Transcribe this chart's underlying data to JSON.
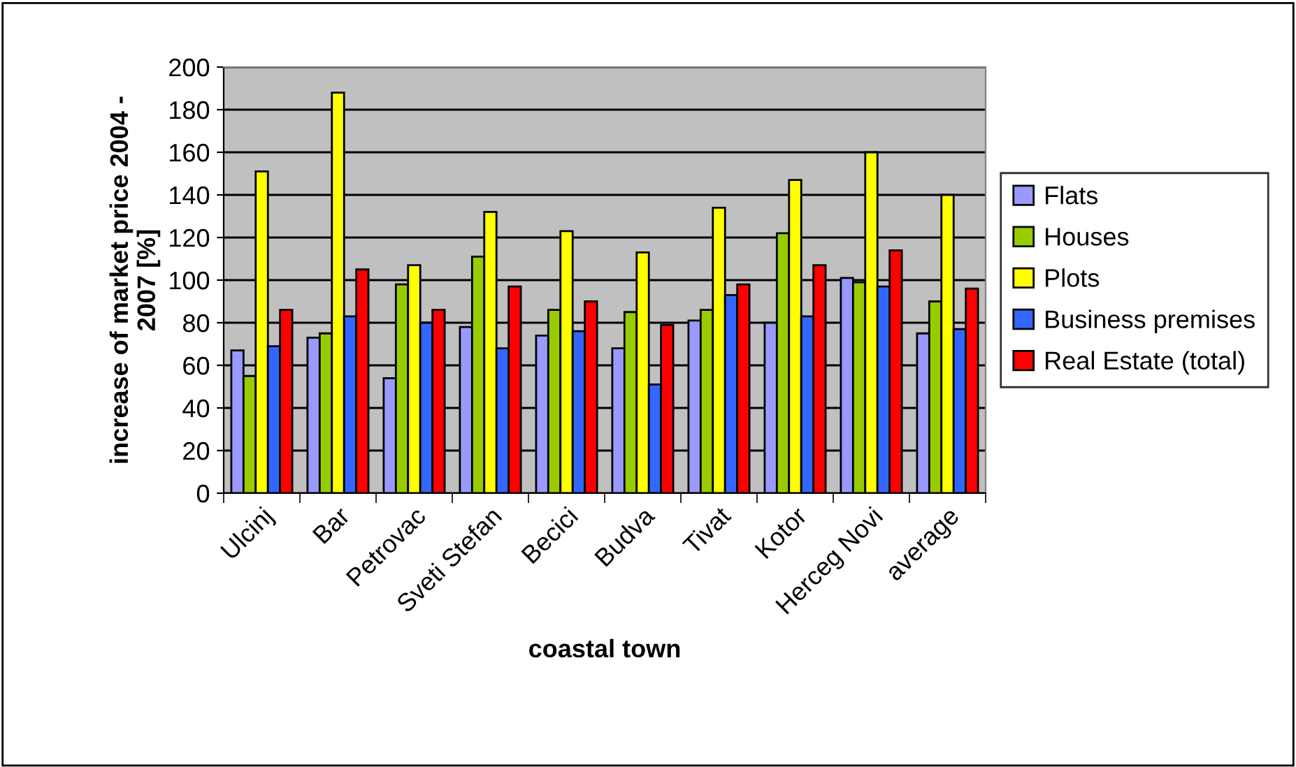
{
  "chart_data": {
    "type": "bar",
    "xlabel": "coastal town",
    "ylabel": "increase of market price 2004 -\n2007 [%]",
    "categories": [
      "Ulcinj",
      "Bar",
      "Petrovac",
      "Sveti Stefan",
      "Becici",
      "Budva",
      "Tivat",
      "Kotor",
      "Herceg Novi",
      "average"
    ],
    "series": [
      {
        "name": "Flats",
        "color": "#9999ff",
        "values": [
          67,
          73,
          54,
          78,
          74,
          68,
          81,
          80,
          101,
          75
        ]
      },
      {
        "name": "Houses",
        "color": "#99cc00",
        "values": [
          55,
          75,
          98,
          111,
          86,
          85,
          86,
          122,
          99,
          90
        ]
      },
      {
        "name": "Plots",
        "color": "#ffff00",
        "values": [
          151,
          188,
          107,
          132,
          123,
          113,
          134,
          147,
          160,
          140
        ]
      },
      {
        "name": "Business premises",
        "color": "#3366ff",
        "values": [
          69,
          83,
          80,
          68,
          76,
          51,
          93,
          83,
          97,
          77
        ]
      },
      {
        "name": "Real Estate (total)",
        "color": "#ff0000",
        "values": [
          86,
          105,
          86,
          97,
          90,
          79,
          98,
          107,
          114,
          96
        ]
      }
    ],
    "ylim": [
      0,
      200
    ],
    "yticks": [
      0,
      20,
      40,
      60,
      80,
      100,
      120,
      140,
      160,
      180,
      200
    ],
    "grid": "y",
    "legend": "right"
  }
}
